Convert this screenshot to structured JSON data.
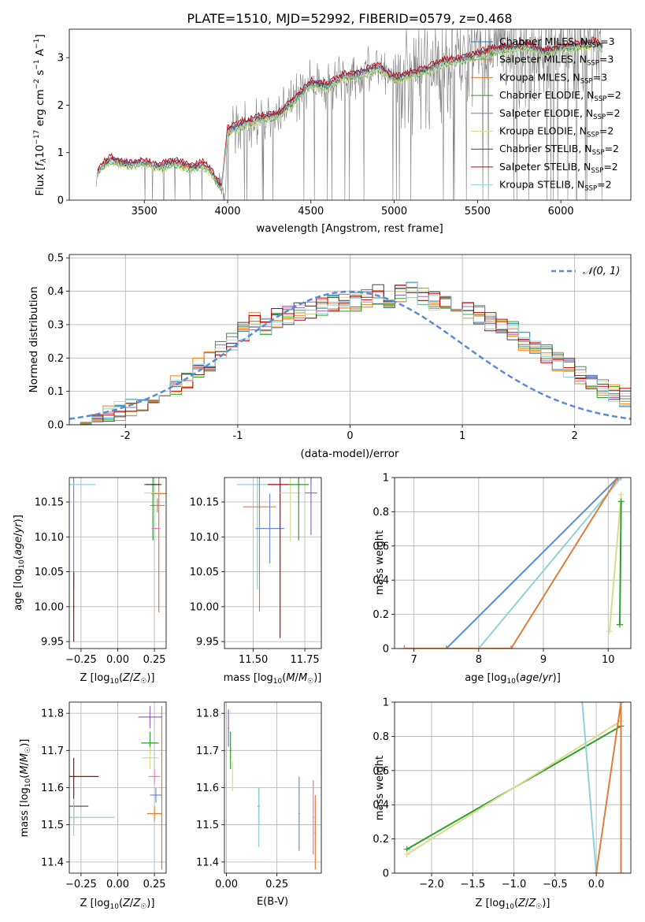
{
  "chart_data": [
    {
      "id": "spectrum",
      "type": "line",
      "title": "PLATE=1510, MJD=52992, FIBERID=0579, z=0.468",
      "xlabel": "wavelength [Angstrom, rest frame]",
      "ylabel": "Flux [f_λ 10^-17 erg cm^-2 s^-1 A^-1]",
      "xlim": [
        3050,
        6420
      ],
      "ylim": [
        0,
        3.6
      ],
      "xticks": [
        3500,
        4000,
        4500,
        5000,
        5500,
        6000
      ],
      "yticks": [
        0,
        1,
        2,
        3
      ],
      "legend_position": "top-right",
      "data_color": "#7f7f7f",
      "data_knots": [
        [
          3200,
          0
        ],
        [
          3220,
          0.6
        ],
        [
          3250,
          0.72
        ],
        [
          3300,
          0.85
        ],
        [
          3350,
          0.78
        ],
        [
          3400,
          0.75
        ],
        [
          3450,
          0.76
        ],
        [
          3500,
          0.78
        ],
        [
          3550,
          0.74
        ],
        [
          3600,
          0.7
        ],
        [
          3650,
          0.76
        ],
        [
          3700,
          0.78
        ],
        [
          3750,
          0.7
        ],
        [
          3800,
          0.68
        ],
        [
          3850,
          0.75
        ],
        [
          3900,
          0.6
        ],
        [
          3950,
          0.3
        ],
        [
          3990,
          0.2
        ],
        [
          4000,
          1.45
        ],
        [
          4100,
          1.6
        ],
        [
          4200,
          1.72
        ],
        [
          4300,
          1.78
        ],
        [
          4400,
          2.1
        ],
        [
          4500,
          2.45
        ],
        [
          4600,
          2.4
        ],
        [
          4700,
          2.6
        ],
        [
          4800,
          2.65
        ],
        [
          4900,
          2.8
        ],
        [
          5000,
          2.55
        ],
        [
          5100,
          2.65
        ],
        [
          5200,
          2.75
        ],
        [
          5300,
          2.9
        ],
        [
          5400,
          2.95
        ],
        [
          5500,
          3.05
        ],
        [
          5600,
          3.15
        ],
        [
          5700,
          3.2
        ],
        [
          5800,
          3.25
        ],
        [
          5900,
          3.1
        ],
        [
          6000,
          3.2
        ],
        [
          6100,
          3.25
        ],
        [
          6200,
          3.3
        ],
        [
          6250,
          3.2
        ]
      ],
      "series": [
        {
          "name": "Chabrier MILES, N_SSP=3",
          "color": "#1f77b4",
          "offset": 0.03
        },
        {
          "name": "Salpeter MILES, N_SSP=3",
          "color": "#ff7f0e",
          "offset": -0.02
        },
        {
          "name": "Kroupa MILES, N_SSP=3",
          "color": "#e07b39",
          "offset": 0.0
        },
        {
          "name": "Chabrier ELODIE, N_SSP=2",
          "color": "#2ca02c",
          "offset": -0.05
        },
        {
          "name": "Salpeter ELODIE, N_SSP=2",
          "color": "#9467bd",
          "offset": 0.05
        },
        {
          "name": "Kroupa ELODIE, N_SSP=2",
          "color": "#dbdb8d",
          "offset": -0.07
        },
        {
          "name": "Chabrier STELIB, N_SSP=2",
          "color": "#444444",
          "offset": 0.02
        },
        {
          "name": "Salpeter STELIB, N_SSP=2",
          "color": "#c00000",
          "offset": 0.08
        },
        {
          "name": "Kroupa STELIB, N_SSP=2",
          "color": "#8ed1dc",
          "offset": -0.03
        }
      ]
    },
    {
      "id": "residuals",
      "type": "line",
      "xlabel": "(data-model)/error",
      "ylabel": "Normed distribution",
      "xlim": [
        -2.5,
        2.5
      ],
      "ylim": [
        0,
        0.51
      ],
      "xticks": [
        -2,
        -1,
        0,
        1,
        2
      ],
      "yticks": [
        0.0,
        0.1,
        0.2,
        0.3,
        0.4,
        0.5
      ],
      "legend_position": "top-right",
      "normal_label": "𝒩(0, 1)",
      "normal_color": "#5b8bd6",
      "bin_width": 0.1,
      "hist_base": [
        0.02,
        0.02,
        0.02,
        0.03,
        0.04,
        0.05,
        0.06,
        0.07,
        0.08,
        0.12,
        0.14,
        0.17,
        0.19,
        0.22,
        0.25,
        0.28,
        0.31,
        0.3,
        0.32,
        0.33,
        0.34,
        0.34,
        0.35,
        0.36,
        0.37,
        0.37,
        0.38,
        0.39,
        0.38,
        0.39,
        0.4,
        0.38,
        0.37,
        0.36,
        0.35,
        0.34,
        0.33,
        0.31,
        0.3,
        0.28,
        0.25,
        0.23,
        0.21,
        0.19,
        0.17,
        0.15,
        0.13,
        0.11,
        0.09,
        0.08
      ],
      "series_colors": [
        "#1f77b4",
        "#ff7f0e",
        "#e07b39",
        "#2ca02c",
        "#9467bd",
        "#dbdb8d",
        "#444444",
        "#c00000",
        "#8ed1dc"
      ]
    },
    {
      "id": "age-vs-z",
      "type": "scatter",
      "xlabel": "Z [log10(Z/Z☉)]",
      "ylabel": "age [log10(age/yr)]",
      "xlim": [
        -0.33,
        0.33
      ],
      "ylim": [
        9.94,
        10.185
      ],
      "xticks": [
        -0.25,
        0.0,
        0.25
      ],
      "xtick_labels": [
        "−0.25",
        "0.00",
        "0.25"
      ],
      "yticks": [
        9.95,
        10.0,
        10.05,
        10.1,
        10.15
      ],
      "ytick_labels": [
        "9.95",
        "10.00",
        "10.05",
        "10.10",
        "10.15"
      ],
      "points": [
        {
          "x": -0.3,
          "y": 10.175,
          "xerr": 0.0,
          "yerr": 0.15,
          "color": "#6b8fd6"
        },
        {
          "x": -0.3,
          "y": 10.175,
          "xerr": 0.15,
          "yerr": 0.0,
          "color": "#8ed1dc"
        },
        {
          "x": 0.28,
          "y": 10.162,
          "xerr": 0.05,
          "yerr": 0.17,
          "color": "#e07b39"
        },
        {
          "x": 0.27,
          "y": 10.145,
          "xerr": 0.05,
          "yerr": 0.01,
          "color": "#e07b39"
        },
        {
          "x": 0.24,
          "y": 10.175,
          "xerr": 0.06,
          "yerr": 0.08,
          "color": "#2ca02c"
        },
        {
          "x": 0.24,
          "y": 10.175,
          "xerr": 0.05,
          "yerr": 0.0,
          "color": "#444444"
        },
        {
          "x": 0.23,
          "y": 10.163,
          "xerr": 0.05,
          "yerr": 0.0,
          "color": "#dbdb8d"
        },
        {
          "x": 0.26,
          "y": 10.112,
          "xerr": 0.03,
          "yerr": 0.0,
          "color": "#e377c2"
        },
        {
          "x": -0.3,
          "y": 10.0,
          "xerr": 0.0,
          "yerr": 0.05,
          "color": "#c00000"
        }
      ]
    },
    {
      "id": "age-vs-mass",
      "type": "scatter",
      "xlabel": "mass [log10(M/M☉)]",
      "ylabel": "",
      "xlim": [
        11.36,
        11.83
      ],
      "ylim": [
        9.94,
        10.185
      ],
      "xticks": [
        11.5,
        11.75
      ],
      "xtick_labels": [
        "11.50",
        "11.75"
      ],
      "yticks": [
        9.95,
        10.0,
        10.05,
        10.1,
        10.15
      ],
      "ytick_labels": [
        "9.95",
        "10.00",
        "10.05",
        "10.10",
        "10.15"
      ],
      "points": [
        {
          "x": 11.52,
          "y": 10.175,
          "xerr": 0.1,
          "yerr": 0.15,
          "color": "#8ed1dc"
        },
        {
          "x": 11.53,
          "y": 10.143,
          "xerr": 0.08,
          "yerr": 0.15,
          "color": "#e07b39"
        },
        {
          "x": 11.58,
          "y": 10.112,
          "xerr": 0.07,
          "yerr": 0.05,
          "color": "#6b8fd6"
        },
        {
          "x": 11.63,
          "y": 10.175,
          "xerr": 0.06,
          "yerr": 0.22,
          "color": "#c00000"
        },
        {
          "x": 11.68,
          "y": 10.163,
          "xerr": 0.05,
          "yerr": 0.07,
          "color": "#dbdb8d"
        },
        {
          "x": 11.72,
          "y": 10.175,
          "xerr": 0.05,
          "yerr": 0.08,
          "color": "#2ca02c"
        },
        {
          "x": 11.78,
          "y": 10.163,
          "xerr": 0.03,
          "yerr": 0.06,
          "color": "#9467bd"
        }
      ]
    },
    {
      "id": "mass-weight-vs-age",
      "type": "line",
      "xlabel": "age [log10(age/yr)]",
      "ylabel": "mass weight",
      "xlim": [
        6.7,
        10.35
      ],
      "ylim": [
        0,
        1.0
      ],
      "xticks": [
        7,
        8,
        9,
        10
      ],
      "yticks": [
        0.0,
        0.2,
        0.4,
        0.6,
        0.8,
        1.0
      ],
      "series": [
        {
          "color": "#5b8bd6",
          "points": [
            [
              7.5,
              0
            ],
            [
              10.15,
              1.0
            ]
          ]
        },
        {
          "color": "#8ed1dc",
          "points": [
            [
              8.0,
              0
            ],
            [
              10.2,
              1.0
            ]
          ]
        },
        {
          "color": "#e07b39",
          "points": [
            [
              6.85,
              0
            ],
            [
              8.5,
              0
            ],
            [
              10.15,
              1.0
            ]
          ]
        },
        {
          "color": "#dbdb8d",
          "points": [
            [
              10.02,
              0.1
            ],
            [
              10.2,
              0.9
            ]
          ]
        },
        {
          "color": "#2ca02c",
          "points": [
            [
              10.18,
              0.14
            ],
            [
              10.2,
              0.86
            ]
          ]
        }
      ]
    },
    {
      "id": "mass-vs-z",
      "type": "scatter",
      "xlabel": "Z [log10(Z/Z☉)]",
      "ylabel": "mass [log10(M/M☉)]",
      "xlim": [
        -0.33,
        0.33
      ],
      "ylim": [
        11.37,
        11.83
      ],
      "xticks": [
        -0.25,
        0.0,
        0.25
      ],
      "xtick_labels": [
        "−0.25",
        "0.00",
        "0.25"
      ],
      "yticks": [
        11.4,
        11.5,
        11.6,
        11.7,
        11.8
      ],
      "ytick_labels": [
        "11.4",
        "11.5",
        "11.6",
        "11.7",
        "11.8"
      ],
      "points": [
        {
          "x": -0.3,
          "y": 11.63,
          "xerr": 0.17,
          "yerr": 0.05,
          "color": "#c00000"
        },
        {
          "x": -0.3,
          "y": 11.55,
          "xerr": 0.1,
          "yerr": 0.05,
          "color": "#444444"
        },
        {
          "x": -0.3,
          "y": 11.52,
          "xerr": 0.28,
          "yerr": 0.05,
          "color": "#8ed1dc"
        },
        {
          "x": 0.22,
          "y": 11.79,
          "xerr": 0.08,
          "yerr": 0.03,
          "color": "#9467bd"
        },
        {
          "x": 0.22,
          "y": 11.72,
          "xerr": 0.06,
          "yerr": 0.03,
          "color": "#2ca02c"
        },
        {
          "x": 0.22,
          "y": 11.68,
          "xerr": 0.06,
          "yerr": 0.03,
          "color": "#dbdb8d"
        },
        {
          "x": 0.25,
          "y": 11.63,
          "xerr": 0.04,
          "yerr": 0.02,
          "color": "#e377c2"
        },
        {
          "x": 0.26,
          "y": 11.58,
          "xerr": 0.04,
          "yerr": 0.02,
          "color": "#6b8fd6"
        },
        {
          "x": 0.25,
          "y": 11.53,
          "xerr": 0.05,
          "yerr": 0.02,
          "color": "#e07b39"
        },
        {
          "x": 0.3,
          "y": 11.6,
          "xerr": 0.0,
          "yerr": 0.22,
          "color": "#e07b39"
        }
      ]
    },
    {
      "id": "mass-vs-ebv",
      "type": "scatter",
      "xlabel": "E(B-V)",
      "ylabel": "",
      "xlim": [
        -0.01,
        0.47
      ],
      "ylim": [
        11.37,
        11.83
      ],
      "xticks": [
        0.0,
        0.25
      ],
      "xtick_labels": [
        "0.00",
        "0.25"
      ],
      "yticks": [
        11.4,
        11.5,
        11.6,
        11.7,
        11.8
      ],
      "ytick_labels": [
        "11.4",
        "11.5",
        "11.6",
        "11.7",
        "11.8"
      ],
      "points": [
        {
          "x": 0.01,
          "y": 11.76,
          "xerr": 0.0,
          "yerr": 0.05,
          "color": "#9467bd"
        },
        {
          "x": 0.02,
          "y": 11.7,
          "xerr": 0.0,
          "yerr": 0.05,
          "color": "#2ca02c"
        },
        {
          "x": 0.03,
          "y": 11.63,
          "xerr": 0.0,
          "yerr": 0.04,
          "color": "#dbdb8d"
        },
        {
          "x": 0.16,
          "y": 11.55,
          "xerr": 0.0,
          "yerr": 0.05,
          "color": "#c00000"
        },
        {
          "x": 0.16,
          "y": 11.52,
          "xerr": 0.0,
          "yerr": 0.08,
          "color": "#8ed1dc"
        },
        {
          "x": 0.36,
          "y": 11.53,
          "xerr": 0.0,
          "yerr": 0.1,
          "color": "#6b8fd6"
        },
        {
          "x": 0.43,
          "y": 11.52,
          "xerr": 0.0,
          "yerr": 0.1,
          "color": "#e377c2"
        },
        {
          "x": 0.44,
          "y": 11.48,
          "xerr": 0.0,
          "yerr": 0.1,
          "color": "#e07b39"
        }
      ]
    },
    {
      "id": "mass-weight-vs-z",
      "type": "line",
      "xlabel": "Z [log10(Z/Z☉)]",
      "ylabel": "mass weight",
      "xlim": [
        -2.45,
        0.42
      ],
      "ylim": [
        0,
        1.0
      ],
      "xticks": [
        -2.0,
        -1.5,
        -1.0,
        -0.5,
        0.0
      ],
      "xtick_labels": [
        "−2.0",
        "−1.5",
        "−1.0",
        "−0.5",
        "0.0"
      ],
      "yticks": [
        0.0,
        0.2,
        0.4,
        0.6,
        0.8,
        1.0
      ],
      "series": [
        {
          "color": "#2ca02c",
          "points": [
            [
              -2.3,
              0.14
            ],
            [
              0.3,
              0.86
            ]
          ]
        },
        {
          "color": "#dbdb8d",
          "points": [
            [
              -2.3,
              0.11
            ],
            [
              0.3,
              0.89
            ]
          ]
        },
        {
          "color": "#8ed1dc",
          "points": [
            [
              -0.17,
              1.0
            ],
            [
              0.0,
              0.0
            ]
          ]
        },
        {
          "color": "#e07b39",
          "points": [
            [
              0.0,
              0.0
            ],
            [
              0.3,
              1.0
            ]
          ]
        },
        {
          "color": "#e07b39",
          "points": [
            [
              0.3,
              0.0
            ],
            [
              0.3,
              1.0
            ]
          ]
        }
      ]
    }
  ]
}
